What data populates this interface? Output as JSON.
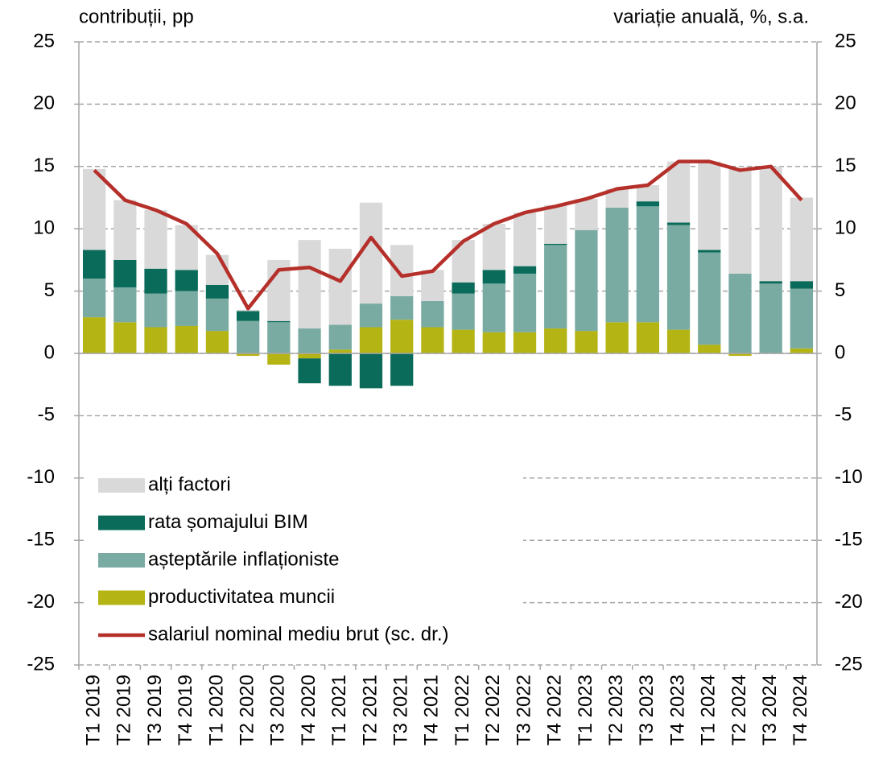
{
  "chart_data": {
    "type": "bar",
    "stacked": true,
    "y_title": "contribuții, pp",
    "y2_title": "variație anuală, %, s.a.",
    "categories": [
      "T1 2019",
      "T2 2019",
      "T3 2019",
      "T4 2019",
      "T1 2020",
      "T2 2020",
      "T3 2020",
      "T4 2020",
      "T1 2021",
      "T2 2021",
      "T3 2021",
      "T4 2021",
      "T1 2022",
      "T2 2022",
      "T3 2022",
      "T4 2022",
      "T1 2023",
      "T2 2023",
      "T3 2023",
      "T4 2023",
      "T1 2024",
      "T2 2024",
      "T3 2024",
      "T4 2024"
    ],
    "series": [
      {
        "name": "productivitatea muncii",
        "color": "#b4b414",
        "values": [
          2.9,
          2.5,
          2.1,
          2.2,
          1.8,
          -0.2,
          -0.9,
          -0.4,
          0.3,
          2.1,
          2.7,
          2.1,
          1.9,
          1.7,
          1.7,
          2.0,
          1.8,
          2.5,
          2.5,
          1.9,
          0.7,
          -0.2,
          0,
          0.4
        ]
      },
      {
        "name": "așteptările inflaționiste",
        "color": "#7aaba2",
        "values": [
          3.1,
          2.8,
          2.7,
          2.8,
          2.6,
          2.6,
          2.5,
          2.0,
          2.0,
          1.9,
          1.9,
          2.1,
          2.9,
          3.9,
          4.7,
          6.7,
          8.1,
          9.2,
          9.3,
          8.4,
          7.4,
          6.4,
          5.6,
          4.8
        ]
      },
      {
        "name": "rata șomajului BIM",
        "color": "#0a6b5a",
        "values": [
          2.3,
          2.2,
          2.0,
          1.7,
          1.1,
          0.8,
          0.1,
          -2.0,
          -2.6,
          -2.8,
          -2.6,
          0,
          0.9,
          1.1,
          0.6,
          0.1,
          0,
          0,
          0.4,
          0.2,
          0.2,
          0,
          0.2,
          0.6
        ]
      },
      {
        "name": "alți factori",
        "color": "#d9d9d9",
        "values": [
          6.5,
          4.8,
          4.7,
          3.6,
          2.4,
          0.1,
          4.9,
          7.1,
          6.1,
          8.1,
          4.1,
          2.5,
          3.4,
          3.7,
          4.3,
          3.1,
          2.5,
          1.5,
          1.3,
          4.9,
          7.1,
          8.4,
          9.2,
          6.7
        ]
      },
      {
        "name": "salariul nominal mediu brut (sc. dr.)",
        "type": "line",
        "axis": "y2",
        "color": "#b5302a",
        "values": [
          14.7,
          12.3,
          11.5,
          10.4,
          8.0,
          3.6,
          6.7,
          6.9,
          5.8,
          9.3,
          6.2,
          6.6,
          9.0,
          10.4,
          11.3,
          11.8,
          12.4,
          13.2,
          13.5,
          15.4,
          15.4,
          14.7,
          15.0,
          12.3
        ]
      }
    ],
    "ylim": [
      -25,
      25
    ],
    "yticks": [
      -25,
      -20,
      -15,
      -10,
      -5,
      0,
      5,
      10,
      15,
      20,
      25
    ],
    "y2lim": [
      -25,
      25
    ],
    "y2ticks": [
      -25,
      -20,
      -15,
      -10,
      -5,
      0,
      5,
      10,
      15,
      20,
      25
    ],
    "grid": true
  }
}
